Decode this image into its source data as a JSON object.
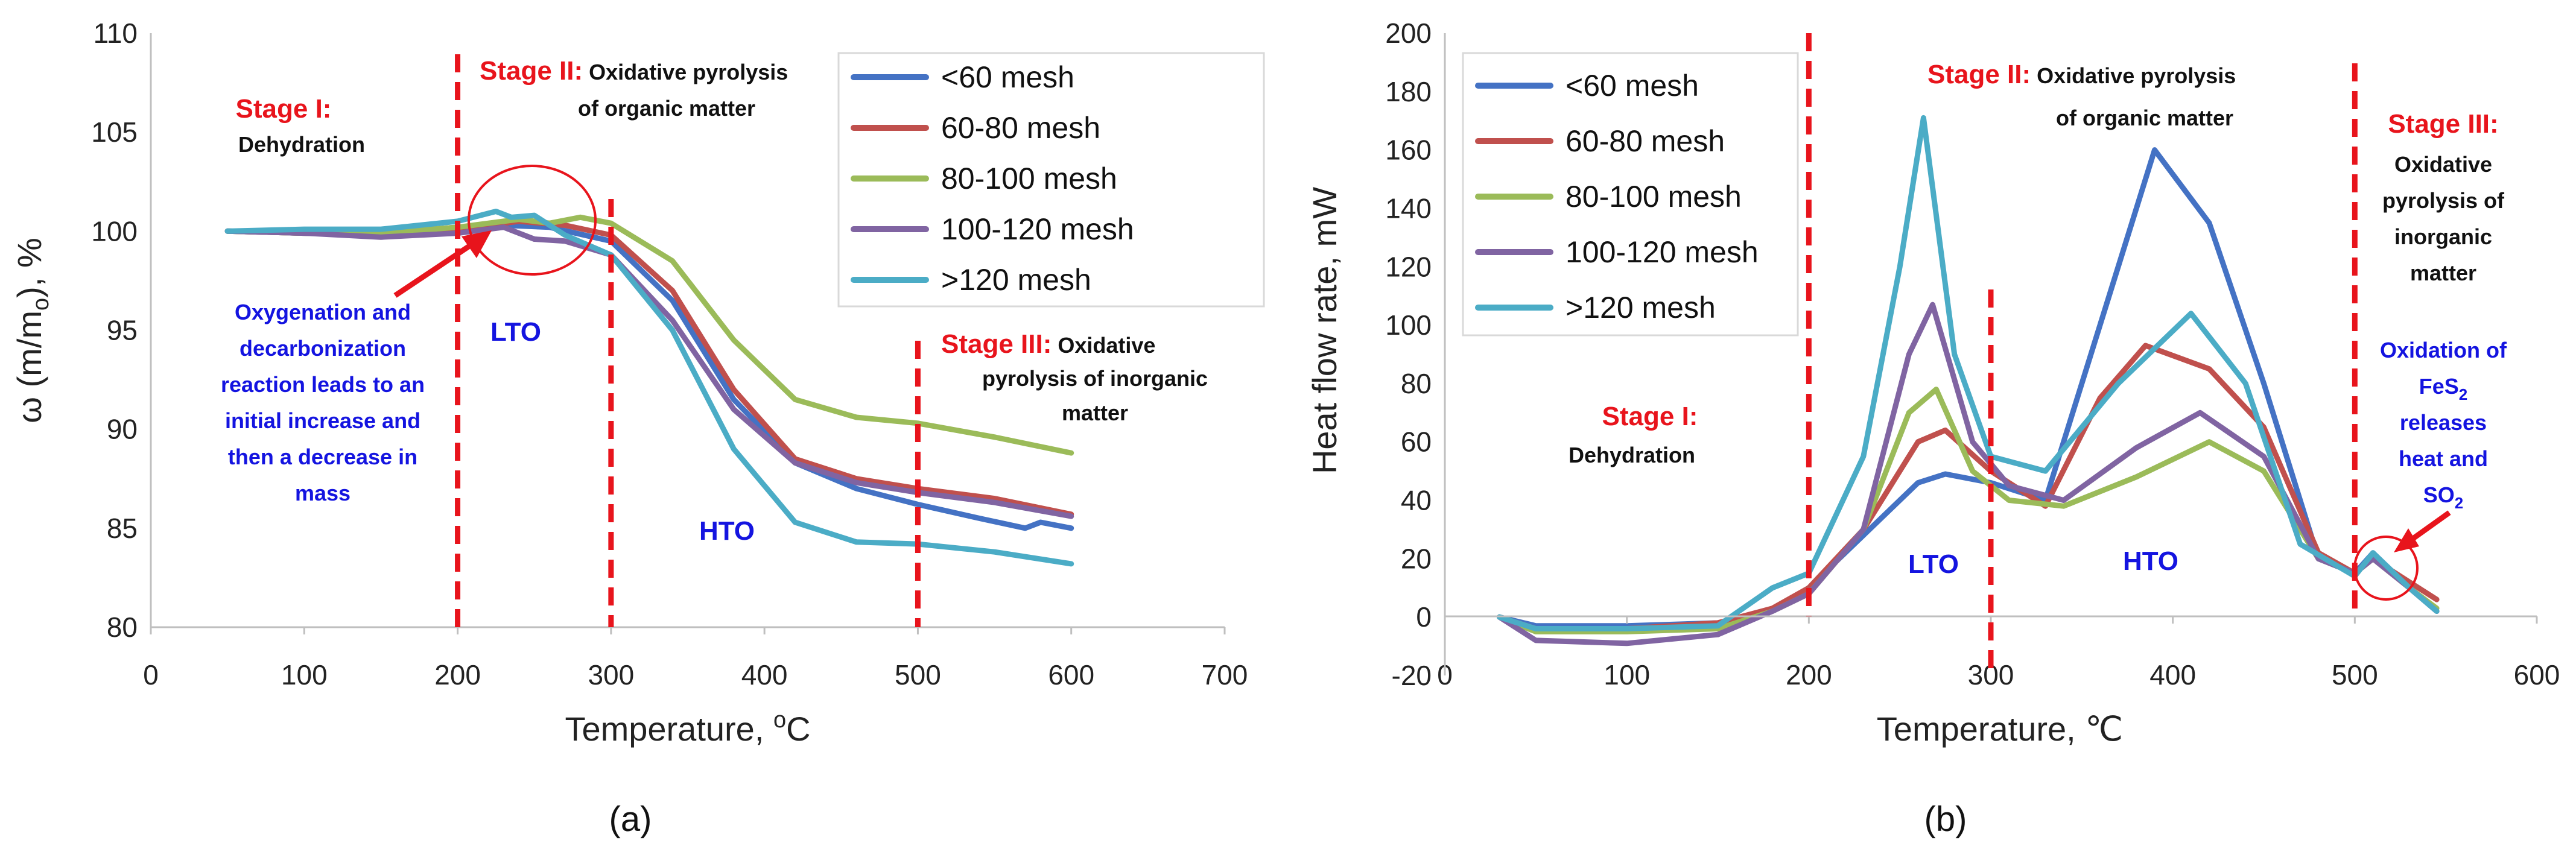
{
  "chart_data": [
    {
      "type": "line",
      "panel_label": "(a)",
      "xlabel": "Temperature, ",
      "xlabel_sup": "o",
      "xlabel_unit": "C",
      "ylabel": "ω (m/m",
      "ylabel_sub": "o",
      "ylabel_tail": "), %",
      "xlim": [
        0,
        700
      ],
      "ylim": [
        80,
        110
      ],
      "xticks": [
        "0",
        "100",
        "200",
        "300",
        "400",
        "500",
        "600",
        "700"
      ],
      "yticks": [
        "80",
        "85",
        "90",
        "95",
        "100",
        "105",
        "110"
      ],
      "legend_position": "top-right",
      "series": [
        {
          "name": "<60 mesh",
          "color": "#4472c4",
          "x": [
            50,
            100,
            150,
            200,
            230,
            260,
            300,
            340,
            380,
            420,
            460,
            500,
            540,
            570,
            580,
            600
          ],
          "y": [
            100,
            99.9,
            99.9,
            100.2,
            100.3,
            100.2,
            99.5,
            96.5,
            91.5,
            88.3,
            87,
            86.2,
            85.5,
            85.0,
            85.3,
            85.0
          ]
        },
        {
          "name": "60-80 mesh",
          "color": "#c0504d",
          "x": [
            50,
            100,
            150,
            200,
            240,
            270,
            300,
            340,
            380,
            420,
            460,
            500,
            550,
            600
          ],
          "y": [
            100,
            99.9,
            99.8,
            100.1,
            100.5,
            100.3,
            99.8,
            97,
            92,
            88.5,
            87.5,
            87.0,
            86.5,
            85.7
          ]
        },
        {
          "name": "80-100 mesh",
          "color": "#9bbb59",
          "x": [
            50,
            100,
            150,
            200,
            240,
            260,
            280,
            300,
            340,
            380,
            420,
            460,
            500,
            550,
            600
          ],
          "y": [
            100,
            99.9,
            99.9,
            100.2,
            100.6,
            100.4,
            100.7,
            100.4,
            98.5,
            94.5,
            91.5,
            90.6,
            90.3,
            89.6,
            88.8
          ]
        },
        {
          "name": "100-120 mesh",
          "color": "#8064a2",
          "x": [
            50,
            100,
            150,
            200,
            230,
            250,
            270,
            300,
            340,
            380,
            420,
            460,
            500,
            550,
            600
          ],
          "y": [
            100,
            99.9,
            99.7,
            99.9,
            100.2,
            99.6,
            99.5,
            98.8,
            95.5,
            91,
            88.3,
            87.3,
            86.8,
            86.3,
            85.6
          ]
        },
        {
          "name": ">120 mesh",
          "color": "#4bacc6",
          "x": [
            50,
            100,
            150,
            200,
            225,
            235,
            250,
            270,
            300,
            340,
            380,
            420,
            460,
            500,
            550,
            600
          ],
          "y": [
            100,
            100.1,
            100.1,
            100.5,
            101,
            100.7,
            100.8,
            99.8,
            98.8,
            95,
            89,
            85.3,
            84.3,
            84.2,
            83.8,
            83.2
          ]
        }
      ],
      "markers": [
        200,
        300,
        500
      ],
      "annotations": {
        "stage1_title": "Stage I:",
        "stage1_text": "Dehydration",
        "stage2_title": "Stage II:",
        "stage2_text1": " Oxidative pyrolysis",
        "stage2_text2": "of organic matter",
        "stage3_title": "Stage III:",
        "stage3_text1": " Oxidative",
        "stage3_text2": "pyrolysis of inorganic",
        "stage3_text3": "matter",
        "lto": "LTO",
        "hto": "HTO",
        "note1": "Oxygenation and",
        "note2": "decarbonization",
        "note3": "reaction leads to an",
        "note4": "initial increase and",
        "note5": "then a decrease in",
        "note6": "mass"
      }
    },
    {
      "type": "line",
      "panel_label": "(b)",
      "xlabel": "Temperature, ℃",
      "ylabel": "Heat flow rate, mW",
      "xlim": [
        0,
        600
      ],
      "ylim": [
        -20,
        200
      ],
      "xticks": [
        "0",
        "100",
        "200",
        "300",
        "400",
        "500",
        "600"
      ],
      "yticks": [
        "-20",
        "0",
        "20",
        "40",
        "60",
        "80",
        "100",
        "120",
        "140",
        "160",
        "180",
        "200"
      ],
      "legend_position": "top-left",
      "series": [
        {
          "name": "<60 mesh",
          "color": "#4472c4",
          "x": [
            30,
            50,
            100,
            150,
            180,
            200,
            230,
            260,
            275,
            300,
            330,
            360,
            390,
            420,
            450,
            480,
            500,
            510,
            530,
            545
          ],
          "y": [
            0,
            -3,
            -3,
            -2,
            2,
            10,
            28,
            46,
            49,
            46,
            40,
            100,
            160,
            135,
            80,
            20,
            15,
            22,
            10,
            2
          ]
        },
        {
          "name": "60-80 mesh",
          "color": "#c0504d",
          "x": [
            30,
            50,
            100,
            150,
            180,
            200,
            230,
            260,
            275,
            300,
            330,
            360,
            385,
            420,
            450,
            480,
            500,
            510,
            530,
            545
          ],
          "y": [
            0,
            -4,
            -4,
            -2,
            3,
            10,
            30,
            60,
            64,
            50,
            38,
            75,
            93,
            85,
            65,
            22,
            15,
            20,
            12,
            6
          ]
        },
        {
          "name": "80-100 mesh",
          "color": "#9bbb59",
          "x": [
            30,
            50,
            100,
            150,
            180,
            200,
            230,
            255,
            270,
            290,
            310,
            340,
            380,
            420,
            450,
            480,
            500,
            510,
            530,
            545
          ],
          "y": [
            0,
            -5,
            -5,
            -4,
            2,
            8,
            30,
            70,
            78,
            50,
            40,
            38,
            48,
            60,
            50,
            20,
            15,
            20,
            10,
            3
          ]
        },
        {
          "name": "100-120 mesh",
          "color": "#8064a2",
          "x": [
            30,
            50,
            100,
            150,
            180,
            200,
            230,
            255,
            268,
            290,
            310,
            340,
            380,
            415,
            450,
            480,
            500,
            510,
            530,
            545
          ],
          "y": [
            0,
            -8,
            -9,
            -6,
            2,
            8,
            30,
            90,
            107,
            60,
            45,
            40,
            58,
            70,
            55,
            20,
            15,
            20,
            10,
            2
          ]
        },
        {
          "name": ">120 mesh",
          "color": "#4bacc6",
          "x": [
            30,
            50,
            100,
            150,
            180,
            200,
            230,
            250,
            263,
            280,
            300,
            330,
            370,
            410,
            440,
            470,
            500,
            510,
            530,
            545
          ],
          "y": [
            0,
            -4,
            -4,
            -3,
            10,
            15,
            55,
            120,
            171,
            90,
            55,
            50,
            80,
            104,
            80,
            25,
            14,
            22,
            10,
            2
          ]
        }
      ],
      "markers": [
        200,
        300,
        500
      ],
      "annotations": {
        "stage1_title": "Stage I:",
        "stage1_text": "Dehydration",
        "stage2_title": "Stage II:",
        "stage2_text1": " Oxidative pyrolysis",
        "stage2_text2": "of organic matter",
        "stage3_title": "Stage III:",
        "stage3_text1": "Oxidative",
        "stage3_text2": "pyrolysis of",
        "stage3_text3": "inorganic",
        "stage3_text4": "matter",
        "lto": "LTO",
        "hto": "HTO",
        "note1": "Oxidation of",
        "note2_a": "FeS",
        "note2_sub": "2",
        "note3": "releases",
        "note4": "heat and",
        "note5_a": "SO",
        "note5_sub": "2"
      }
    }
  ]
}
